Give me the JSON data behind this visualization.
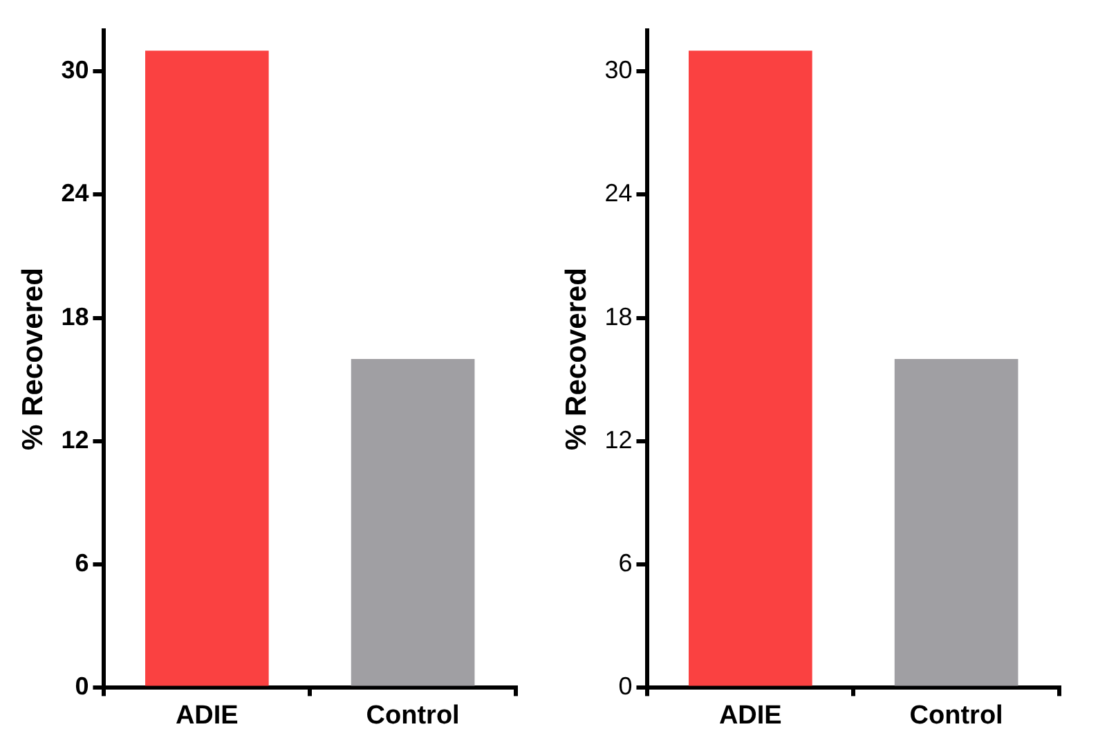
{
  "chart_data": [
    {
      "type": "bar",
      "ylabel": "% Recovered",
      "categories": [
        "ADIE",
        "Control"
      ],
      "values": [
        31,
        16
      ],
      "colors": [
        "#fa4141",
        "#a09fa3"
      ],
      "ylim": [
        0,
        32
      ],
      "yticks": [
        0,
        6,
        12,
        18,
        24,
        30
      ]
    },
    {
      "type": "bar",
      "ylabel": "% Recovered",
      "categories": [
        "ADIE",
        "Control"
      ],
      "values": [
        31,
        16
      ],
      "colors": [
        "#fa4141",
        "#a09fa3"
      ],
      "ylim": [
        0,
        32
      ],
      "yticks": [
        0,
        6,
        12,
        18,
        24,
        30
      ]
    }
  ]
}
